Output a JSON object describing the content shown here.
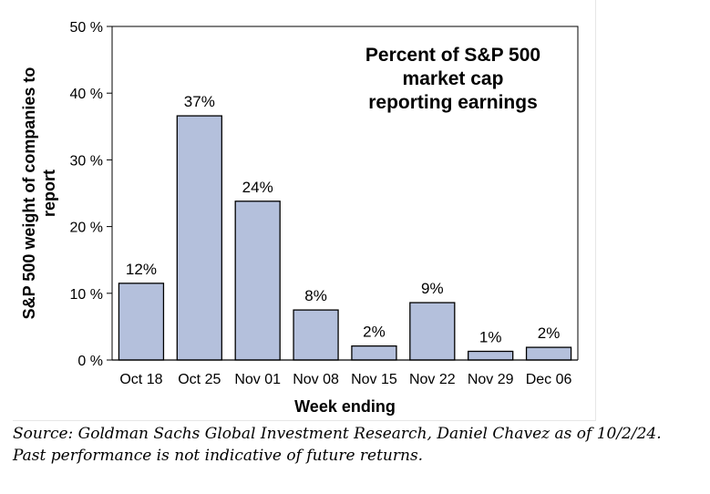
{
  "chart_data": {
    "type": "bar",
    "title_lines": [
      "Percent of S&P 500",
      "market cap",
      "reporting earnings"
    ],
    "xlabel": "Week ending",
    "ylabel_lines": [
      "S&P 500 weight of companies to",
      "report"
    ],
    "categories": [
      "Oct 18",
      "Oct 25",
      "Nov 01",
      "Nov 08",
      "Nov 15",
      "Nov 22",
      "Nov 29",
      "Dec 06"
    ],
    "values": [
      11.5,
      36.6,
      23.8,
      7.5,
      2.1,
      8.6,
      1.3,
      1.9
    ],
    "data_labels": [
      "12%",
      "37%",
      "24%",
      "8%",
      "2%",
      "9%",
      "1%",
      "2%"
    ],
    "yticks": [
      0,
      10,
      20,
      30,
      40,
      50
    ],
    "ytick_labels": [
      "0 %",
      "10 %",
      "20 %",
      "30 %",
      "40 %",
      "50 %"
    ],
    "ylim": [
      0,
      50
    ],
    "bar_color": "#b4c0dc",
    "grid": false,
    "legend": "none"
  },
  "footer": {
    "source_line": "Source: Goldman Sachs Global Investment Research, Daniel Chavez  as of 10/2/24.",
    "disclaimer_line": "Past performance is not indicative of future returns."
  }
}
